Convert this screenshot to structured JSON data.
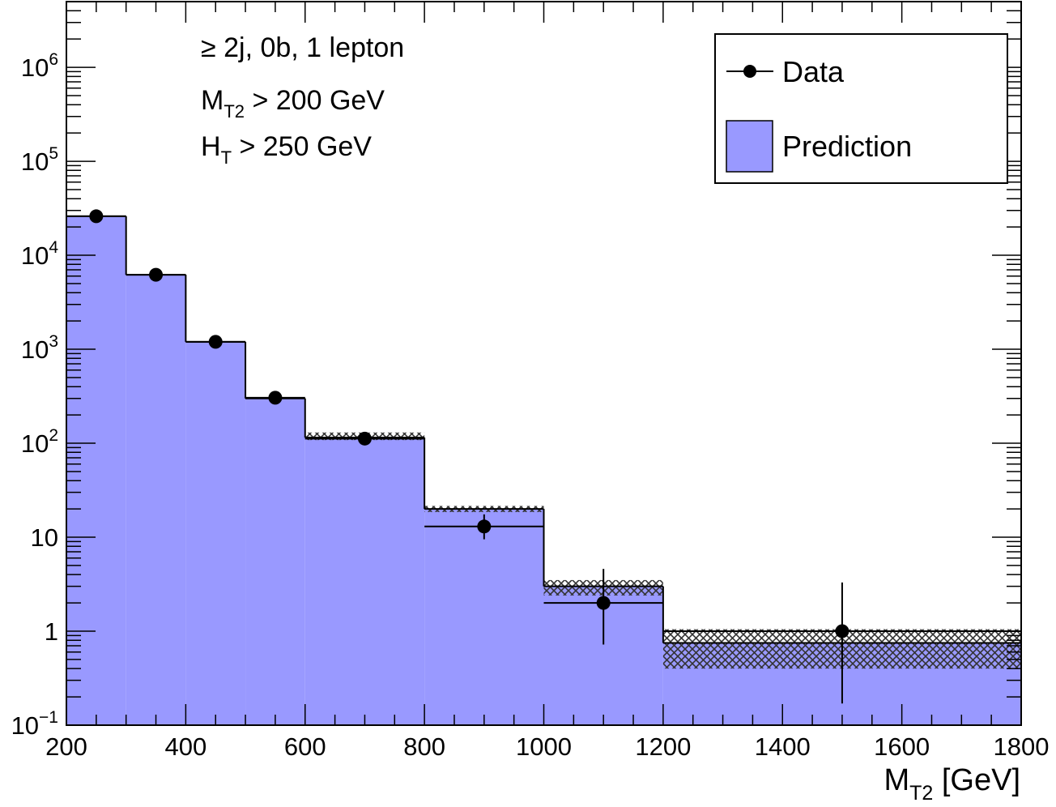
{
  "chart_data": {
    "type": "bar",
    "x_unit_label": "[GeV]",
    "xlabel_main": "M",
    "xlabel_sub": "T2",
    "xlim": [
      200,
      1800
    ],
    "ylim": [
      0.1,
      5000000
    ],
    "y_scale": "log",
    "x_ticks": [
      200,
      400,
      600,
      800,
      1000,
      1200,
      1400,
      1600,
      1800
    ],
    "y_ticks": [
      {
        "value": 0.1,
        "base": "10",
        "exp": "−1"
      },
      {
        "value": 1,
        "label": "1"
      },
      {
        "value": 10,
        "label": "10"
      },
      {
        "value": 100,
        "base": "10",
        "exp": "2"
      },
      {
        "value": 1000,
        "base": "10",
        "exp": "3"
      },
      {
        "value": 10000,
        "base": "10",
        "exp": "4"
      },
      {
        "value": 100000,
        "base": "10",
        "exp": "5"
      },
      {
        "value": 1000000,
        "base": "10",
        "exp": "6"
      }
    ],
    "bins": [
      {
        "low": 200,
        "high": 300,
        "prediction": 26000,
        "unc_low": 25000,
        "unc_high": 27000
      },
      {
        "low": 300,
        "high": 400,
        "prediction": 6200,
        "unc_low": 6000,
        "unc_high": 6400
      },
      {
        "low": 400,
        "high": 600,
        "prediction": 1200,
        "unc_low": 1150,
        "unc_high": 1250,
        "split_at": 500,
        "prediction_2": 300
      },
      {
        "low": 600,
        "high": 800,
        "prediction": 115,
        "unc_low": 108,
        "unc_high": 130
      },
      {
        "low": 800,
        "high": 1000,
        "prediction": 20,
        "unc_low": 18.5,
        "unc_high": 21.5
      },
      {
        "low": 1000,
        "high": 1200,
        "prediction": 3.0,
        "unc_low": 2.4,
        "unc_high": 3.5
      },
      {
        "low": 1200,
        "high": 1800,
        "prediction": 0.75,
        "unc_low": 0.4,
        "unc_high": 1.05
      }
    ],
    "prediction_steps": [
      {
        "low": 200,
        "high": 300,
        "value": 26000
      },
      {
        "low": 300,
        "high": 400,
        "value": 6200
      },
      {
        "low": 400,
        "high": 500,
        "value": 1200
      },
      {
        "low": 500,
        "high": 600,
        "value": 300
      },
      {
        "low": 600,
        "high": 800,
        "value": 115
      },
      {
        "low": 800,
        "high": 1000,
        "value": 20
      },
      {
        "low": 1000,
        "high": 1200,
        "value": 3.0
      },
      {
        "low": 1200,
        "high": 1800,
        "value": 0.75
      }
    ],
    "uncertainty": [
      {
        "low": 600,
        "high": 800,
        "lo": 108,
        "hi": 130
      },
      {
        "low": 800,
        "high": 1000,
        "lo": 18.5,
        "hi": 21.5
      },
      {
        "low": 1000,
        "high": 1200,
        "lo": 2.4,
        "hi": 3.5
      },
      {
        "low": 1200,
        "high": 1800,
        "lo": 0.4,
        "hi": 1.05
      }
    ],
    "data_points": [
      {
        "x": 250,
        "xlow": 200,
        "xhigh": 300,
        "y": 26000,
        "ylow": 25800,
        "yhigh": 26200
      },
      {
        "x": 350,
        "xlow": 300,
        "xhigh": 400,
        "y": 6200,
        "ylow": 6120,
        "yhigh": 6280
      },
      {
        "x": 450,
        "xlow": 400,
        "xhigh": 500,
        "y": 1200,
        "ylow": 1165,
        "yhigh": 1235
      },
      {
        "x": 550,
        "xlow": 500,
        "xhigh": 600,
        "y": 305,
        "ylow": 288,
        "yhigh": 323
      },
      {
        "x": 700,
        "xlow": 600,
        "xhigh": 800,
        "y": 112,
        "ylow": 101,
        "yhigh": 123
      },
      {
        "x": 900,
        "xlow": 800,
        "xhigh": 1000,
        "y": 13,
        "ylow": 9.5,
        "yhigh": 17.5
      },
      {
        "x": 1100,
        "xlow": 1000,
        "xhigh": 1200,
        "y": 2,
        "ylow": 0.72,
        "yhigh": 4.6
      },
      {
        "x": 1500,
        "xlow": 1200,
        "xhigh": 1800,
        "y": 1,
        "ylow": 0.17,
        "yhigh": 3.3
      }
    ],
    "annotations": [
      {
        "text": "≥ 2j, 0b, 1 lepton"
      },
      {
        "main": "M",
        "sub": "T2",
        "rest": " > 200 GeV"
      },
      {
        "main": "H",
        "sub": "T",
        "rest": " > 250 GeV"
      }
    ],
    "legend": {
      "placement": "top-right",
      "entries": [
        {
          "label": "Data",
          "kind": "marker"
        },
        {
          "label": "Prediction",
          "kind": "fill"
        }
      ]
    },
    "colors": {
      "prediction_fill": "#9999ff",
      "line": "#000000",
      "hatch": "#333333",
      "background": "#ffffff"
    }
  }
}
